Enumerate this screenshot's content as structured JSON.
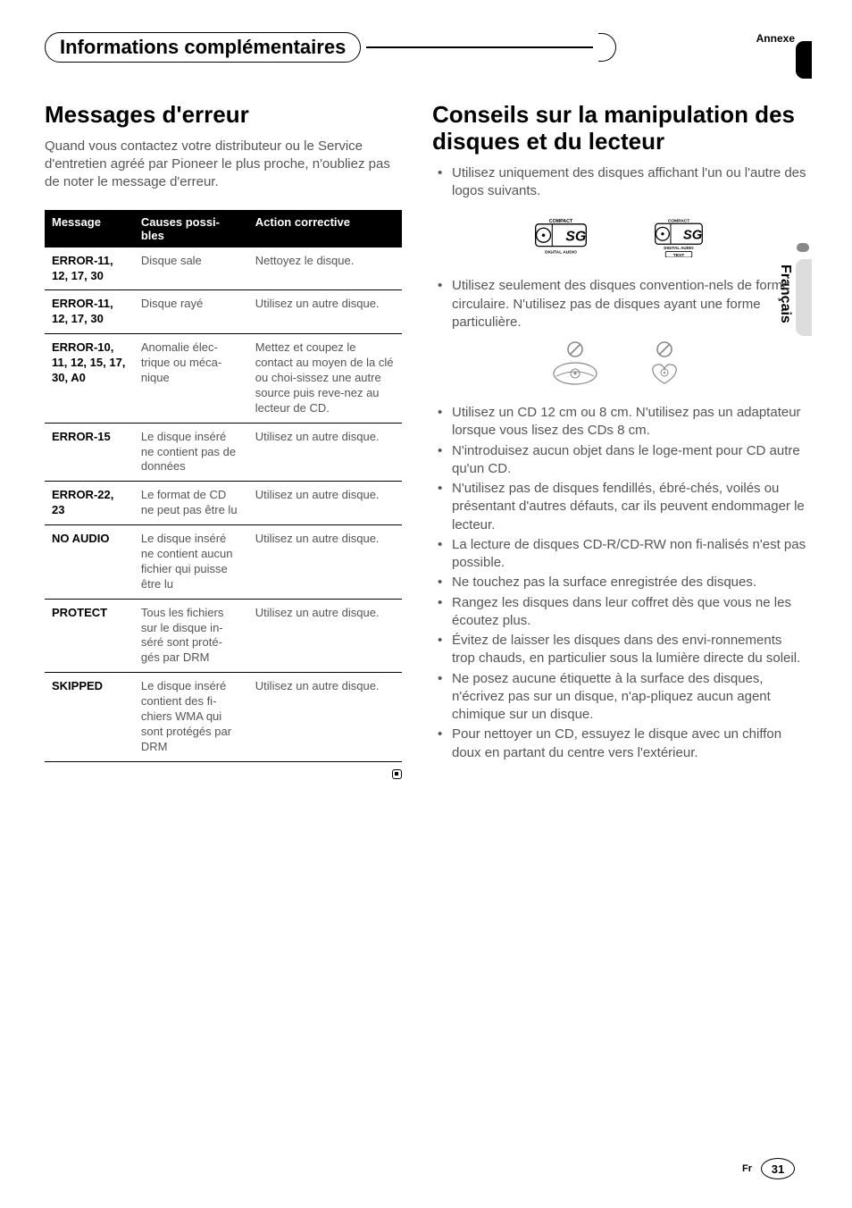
{
  "annexe": "Annexe",
  "section_title": "Informations complémentaires",
  "left": {
    "heading": "Messages d'erreur",
    "intro": "Quand vous contactez votre distributeur ou le Service d'entretien agréé par Pioneer le plus proche, n'oubliez pas de noter le message d'erreur.",
    "table": {
      "headers": [
        "Message",
        "Causes possi-bles",
        "Action corrective"
      ],
      "rows": [
        [
          "ERROR-11, 12, 17, 30",
          "Disque sale",
          "Nettoyez le disque."
        ],
        [
          "ERROR-11, 12, 17, 30",
          "Disque rayé",
          "Utilisez un autre disque."
        ],
        [
          "ERROR-10, 11, 12, 15, 17, 30, A0",
          "Anomalie élec-trique ou méca-nique",
          "Mettez et coupez le contact au moyen de la clé ou choi-sissez une autre source puis reve-nez au lecteur de CD."
        ],
        [
          "ERROR-15",
          "Le disque inséré ne contient pas de données",
          "Utilisez un autre disque."
        ],
        [
          "ERROR-22, 23",
          "Le format de CD ne peut pas être lu",
          "Utilisez un autre disque."
        ],
        [
          "NO AUDIO",
          "Le disque inséré ne contient aucun fichier qui puisse être lu",
          "Utilisez un autre disque."
        ],
        [
          "PROTECT",
          "Tous les fichiers sur le disque in-séré sont proté-gés par DRM",
          "Utilisez un autre disque."
        ],
        [
          "SKIPPED",
          "Le disque inséré contient des fi-chiers WMA qui sont protégés par DRM",
          "Utilisez un autre disque."
        ]
      ]
    }
  },
  "right": {
    "heading": "Conseils sur la manipulation des disques et du lecteur",
    "bullets_top": [
      "Utilisez uniquement des disques affichant l'un ou l'autre des logos suivants."
    ],
    "bullets_mid": [
      "Utilisez seulement des disques convention-nels de forme circulaire. N'utilisez pas de disques ayant une forme particulière."
    ],
    "bullets_rest": [
      "Utilisez un CD 12 cm ou 8 cm. N'utilisez pas un adaptateur lorsque vous lisez des CDs 8 cm.",
      "N'introduisez aucun objet dans le loge-ment pour CD autre qu'un CD.",
      "N'utilisez pas de disques fendillés, ébré-chés, voilés ou présentant d'autres défauts, car ils peuvent endommager le lecteur.",
      "La lecture de disques CD-R/CD-RW non fi-nalisés n'est pas possible.",
      "Ne touchez pas la surface enregistrée des disques.",
      "Rangez les disques dans leur coffret dès que vous ne les écoutez plus.",
      "Évitez de laisser les disques dans des envi-ronnements trop chauds, en particulier sous la lumière directe du soleil.",
      "Ne posez aucune étiquette à la surface des disques, n'écrivez pas sur un disque, n'ap-pliquez aucun agent chimique sur un disque.",
      "Pour nettoyer un CD, essuyez le disque avec un chiffon doux en partant du centre vers l'extérieur."
    ]
  },
  "logos": {
    "label1": "COMPACT",
    "label2": "DIGITAL AUDIO",
    "label3": "TEXT"
  },
  "lang": "Français",
  "footer": {
    "fr": "Fr",
    "page": "31"
  },
  "colors": {
    "text_gray": "#555555",
    "black": "#000000",
    "tab_gray": "#dddddd"
  }
}
